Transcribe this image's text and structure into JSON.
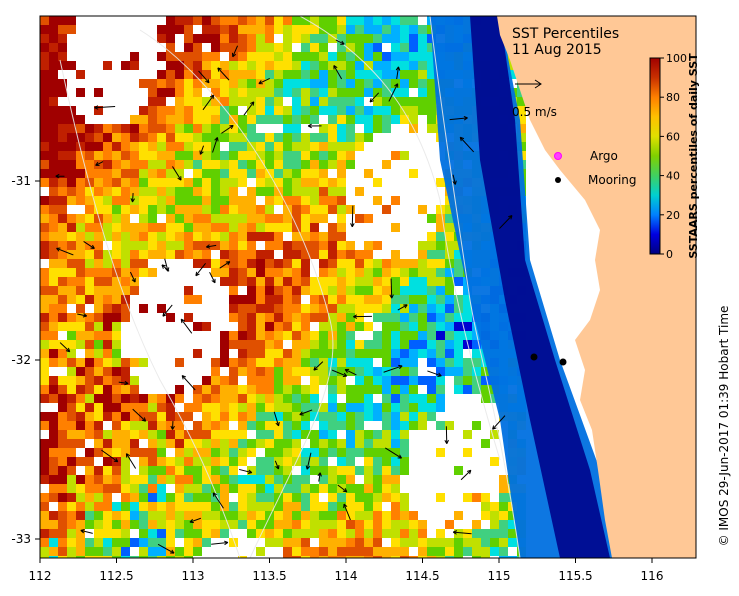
{
  "map": {
    "title": "SST Percentiles",
    "date": "11 Aug 2015",
    "credit": "© IMOS 29-Jun-2017 01:39 Hobart Time",
    "x_ticks": [
      "112",
      "112.5",
      "113",
      "113.5",
      "114",
      "114.5",
      "115",
      "115.5",
      "116"
    ],
    "y_ticks": [
      "-31",
      "-32",
      "-33"
    ],
    "colorbar": {
      "label": "SSTAARS percentiles of daily SST",
      "ticks": [
        "100",
        "80",
        "60",
        "40",
        "20",
        "0"
      ],
      "colors": [
        "#000080",
        "#0000d0",
        "#0060ff",
        "#00b0ff",
        "#00e0e0",
        "#40d080",
        "#60d000",
        "#c0e000",
        "#ffe000",
        "#ffb000",
        "#ff8000",
        "#e05000",
        "#c02000",
        "#a00000"
      ]
    },
    "legend": {
      "velocity_label": "0.5 m/s",
      "argo_label": "Argo",
      "mooring_label": "Mooring"
    }
  }
}
